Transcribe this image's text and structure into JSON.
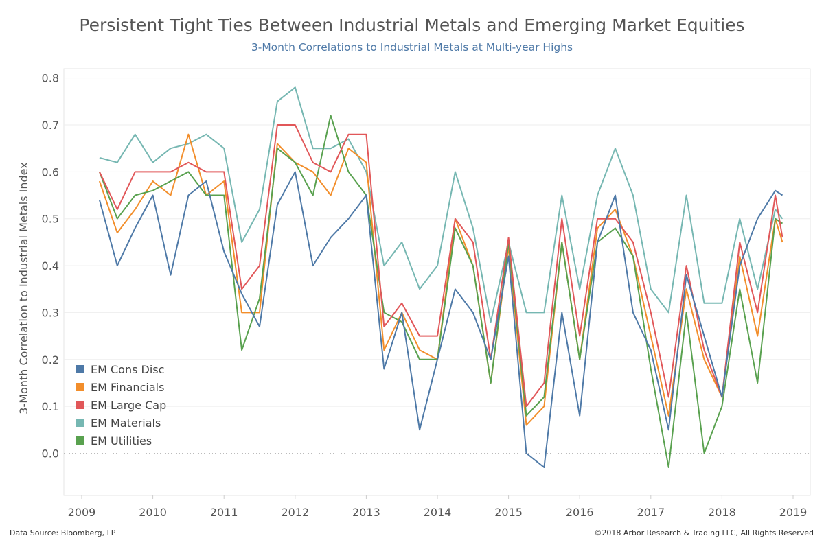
{
  "header": {
    "title": "Persistent Tight Ties Between Industrial Metals and Emerging Market Equities",
    "subtitle": "3-Month Correlations to Industrial Metals at Multi-year Highs"
  },
  "footer": {
    "source": "Data Source: Bloomberg, LP",
    "copyright": "©2018 Arbor Research & Trading LLC, All Rights Reserved"
  },
  "chart_data": {
    "type": "line",
    "ylabel": "3-Month Correlation to Industrial Metals Index",
    "xlabel": "",
    "xlim": [
      2009,
      2019
    ],
    "ylim": [
      -0.09,
      0.82
    ],
    "x_ticks": [
      "2009",
      "2010",
      "2011",
      "2012",
      "2013",
      "2014",
      "2015",
      "2016",
      "2017",
      "2018",
      "2019"
    ],
    "y_ticks": [
      "0.0",
      "0.1",
      "0.2",
      "0.3",
      "0.4",
      "0.5",
      "0.6",
      "0.7",
      "0.8"
    ],
    "legend_position": "bottom-left",
    "x": [
      2009.25,
      2009.5,
      2009.75,
      2010.0,
      2010.25,
      2010.5,
      2010.75,
      2011.0,
      2011.25,
      2011.5,
      2011.75,
      2012.0,
      2012.25,
      2012.5,
      2012.75,
      2013.0,
      2013.25,
      2013.5,
      2013.75,
      2014.0,
      2014.25,
      2014.5,
      2014.75,
      2015.0,
      2015.25,
      2015.5,
      2015.75,
      2016.0,
      2016.25,
      2016.5,
      2016.75,
      2017.0,
      2017.25,
      2017.5,
      2017.75,
      2018.0,
      2018.25,
      2018.5,
      2018.75,
      2018.85
    ],
    "series": [
      {
        "name": "EM Cons Disc",
        "color": "#4e79a7",
        "values": [
          0.54,
          0.4,
          0.48,
          0.55,
          0.38,
          0.55,
          0.58,
          0.43,
          0.34,
          0.27,
          0.53,
          0.6,
          0.4,
          0.46,
          0.5,
          0.55,
          0.18,
          0.3,
          0.05,
          0.2,
          0.35,
          0.3,
          0.2,
          0.42,
          0.0,
          -0.03,
          0.3,
          0.08,
          0.45,
          0.55,
          0.3,
          0.22,
          0.05,
          0.38,
          0.25,
          0.12,
          0.4,
          0.5,
          0.56,
          0.55
        ]
      },
      {
        "name": "EM Financials",
        "color": "#f28e2b",
        "values": [
          0.58,
          0.47,
          0.52,
          0.58,
          0.55,
          0.68,
          0.55,
          0.58,
          0.3,
          0.3,
          0.66,
          0.62,
          0.6,
          0.55,
          0.65,
          0.62,
          0.22,
          0.3,
          0.22,
          0.2,
          0.5,
          0.4,
          0.15,
          0.44,
          0.06,
          0.1,
          0.45,
          0.2,
          0.48,
          0.52,
          0.42,
          0.25,
          0.08,
          0.35,
          0.2,
          0.12,
          0.42,
          0.25,
          0.5,
          0.45
        ]
      },
      {
        "name": "EM Large Cap",
        "color": "#e15759",
        "values": [
          0.6,
          0.52,
          0.6,
          0.6,
          0.6,
          0.62,
          0.6,
          0.6,
          0.35,
          0.4,
          0.7,
          0.7,
          0.62,
          0.6,
          0.68,
          0.68,
          0.27,
          0.32,
          0.25,
          0.25,
          0.5,
          0.45,
          0.2,
          0.46,
          0.1,
          0.15,
          0.5,
          0.25,
          0.5,
          0.5,
          0.45,
          0.3,
          0.12,
          0.4,
          0.22,
          0.12,
          0.45,
          0.3,
          0.55,
          0.46
        ]
      },
      {
        "name": "EM Materials",
        "color": "#76b7b2",
        "values": [
          0.63,
          0.62,
          0.68,
          0.62,
          0.65,
          0.66,
          0.68,
          0.65,
          0.45,
          0.52,
          0.75,
          0.78,
          0.65,
          0.65,
          0.67,
          0.6,
          0.4,
          0.45,
          0.35,
          0.4,
          0.6,
          0.48,
          0.28,
          0.45,
          0.3,
          0.3,
          0.55,
          0.35,
          0.55,
          0.65,
          0.55,
          0.35,
          0.3,
          0.55,
          0.32,
          0.32,
          0.5,
          0.35,
          0.52,
          0.5
        ]
      },
      {
        "name": "EM Utilities",
        "color": "#59a14f",
        "values": [
          0.6,
          0.5,
          0.55,
          0.56,
          0.58,
          0.6,
          0.55,
          0.55,
          0.22,
          0.33,
          0.65,
          0.62,
          0.55,
          0.72,
          0.6,
          0.55,
          0.3,
          0.28,
          0.2,
          0.2,
          0.48,
          0.4,
          0.15,
          0.45,
          0.08,
          0.12,
          0.45,
          0.2,
          0.45,
          0.48,
          0.42,
          0.18,
          -0.03,
          0.3,
          0.0,
          0.1,
          0.35,
          0.15,
          0.5,
          0.49
        ]
      }
    ]
  }
}
